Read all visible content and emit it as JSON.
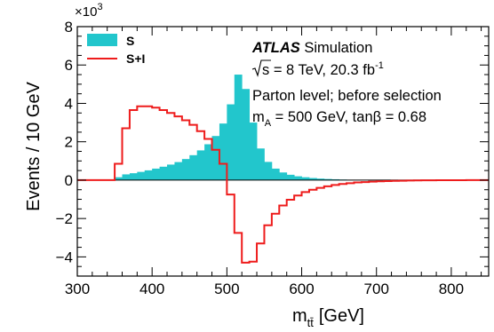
{
  "chart_data": {
    "type": "histogram",
    "xlabel": "m",
    "xlabel_sub": "tt̄",
    "xlabel_unit": "[GeV]",
    "ylabel": "Events / 10 GeV",
    "y_multiplier": "×10",
    "y_multiplier_exp": "3",
    "xlim": [
      300,
      850
    ],
    "ylim": [
      -5,
      8
    ],
    "x_ticks": [
      300,
      400,
      500,
      600,
      700,
      800
    ],
    "y_ticks": [
      -4,
      -2,
      0,
      2,
      4,
      6,
      8
    ],
    "bin_width": 10,
    "bin_edges_start": 300,
    "legend_position": "top-left",
    "annotations": {
      "experiment": "ATLAS",
      "experiment_suffix": " Simulation",
      "energy_prefix": "s",
      "energy_text": " = 8 TeV, 20.3 fb",
      "energy_exp": "-1",
      "selection": "Parton level; before selection",
      "mass_prefix": "m",
      "mass_sub": "A",
      "mass_text": " = 500 GeV, tanβ = 0.68"
    },
    "series": [
      {
        "name": "S",
        "style": "filled",
        "color": "#22c6cc",
        "values": [
          0,
          0,
          0,
          0,
          0.03,
          0.15,
          0.3,
          0.36,
          0.43,
          0.51,
          0.6,
          0.7,
          0.81,
          0.94,
          1.1,
          1.3,
          1.55,
          1.87,
          2.3,
          2.95,
          3.95,
          5.5,
          4.75,
          3.0,
          1.65,
          0.95,
          0.6,
          0.4,
          0.28,
          0.2,
          0.15,
          0.11,
          0.08,
          0.06,
          0.045,
          0.03,
          0.02,
          0.015,
          0.01,
          0.008,
          0.005,
          0.004,
          0.003,
          0.002,
          0.001,
          0.001,
          0.001,
          0,
          0,
          0,
          0,
          0,
          0,
          0,
          0
        ]
      },
      {
        "name": "S+I",
        "style": "step",
        "color": "#ee1c1c",
        "values": [
          0,
          0,
          0,
          0,
          0,
          0.85,
          2.7,
          3.65,
          3.85,
          3.85,
          3.78,
          3.65,
          3.5,
          3.32,
          3.12,
          2.88,
          2.55,
          2.15,
          1.58,
          0.85,
          -0.75,
          -2.75,
          -4.3,
          -4.25,
          -3.3,
          -2.35,
          -1.75,
          -1.32,
          -1.02,
          -0.8,
          -0.62,
          -0.5,
          -0.4,
          -0.32,
          -0.25,
          -0.2,
          -0.16,
          -0.12,
          -0.1,
          -0.08,
          -0.06,
          -0.05,
          -0.04,
          -0.03,
          -0.02,
          -0.015,
          -0.01,
          -0.008,
          -0.005,
          -0.003,
          -0.002,
          -0.001,
          0,
          0,
          0
        ]
      }
    ]
  }
}
